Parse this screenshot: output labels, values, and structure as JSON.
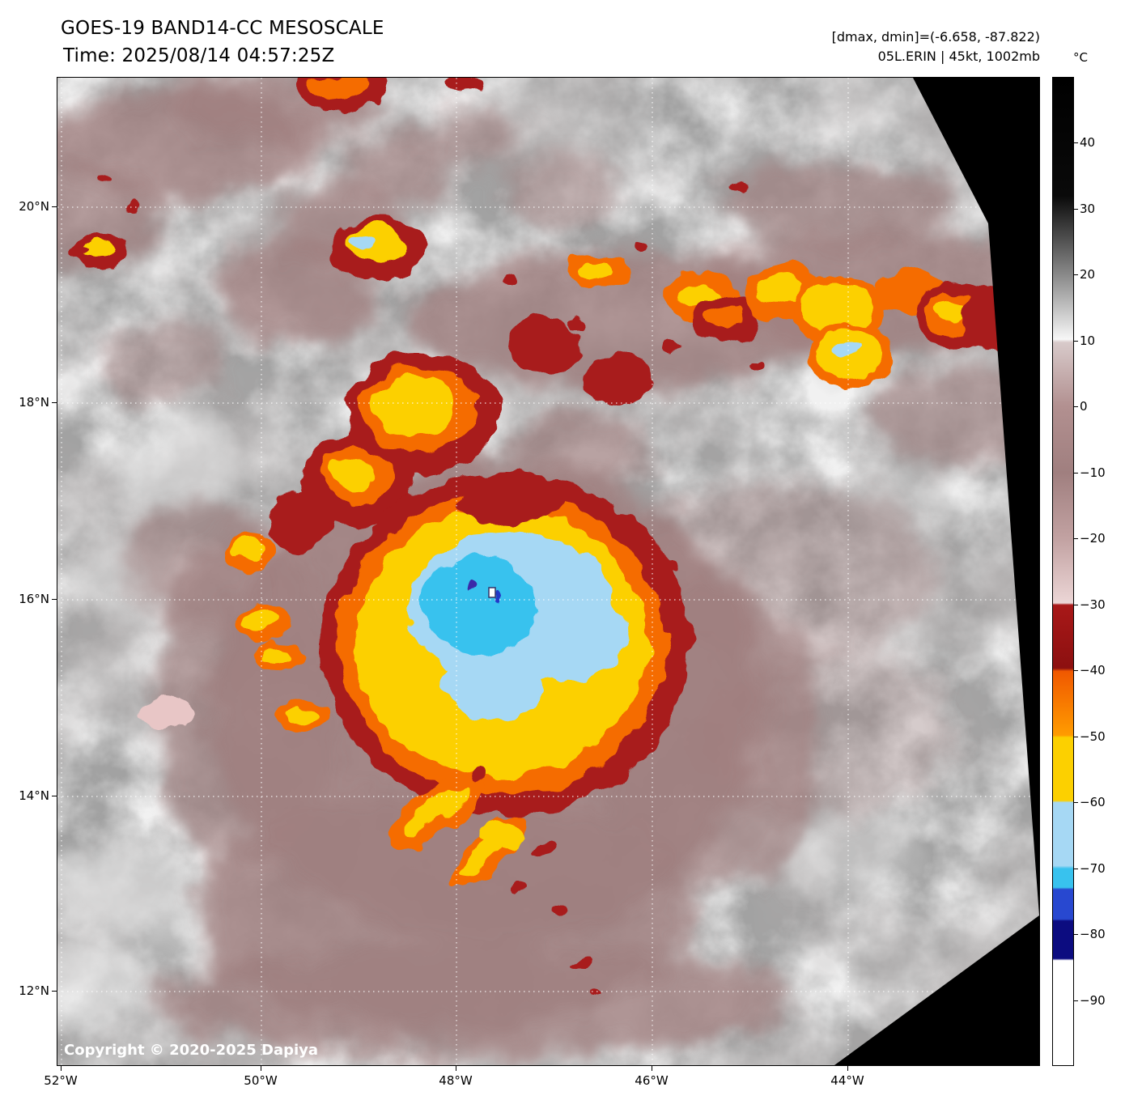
{
  "header": {
    "title_line1": "GOES-19 BAND14-CC MESOSCALE",
    "title_line2": "Time: 2025/08/14 04:57:25Z",
    "info_line1": "[dmax, dmin]=(-6.658, -87.822)",
    "info_line2": "05L.ERIN | 45kt, 1002mb"
  },
  "map": {
    "lat_labels": [
      "20°N",
      "18°N",
      "16°N",
      "14°N",
      "12°N"
    ],
    "lon_labels": [
      "52°W",
      "50°W",
      "48°W",
      "46°W",
      "44°W"
    ],
    "copyright": "Copyright © 2020-2025 Dapiya"
  },
  "colorbar": {
    "unit": "°C",
    "ticks": [
      {
        "label": "40",
        "value": 40
      },
      {
        "label": "30",
        "value": 30
      },
      {
        "label": "20",
        "value": 20
      },
      {
        "label": "10",
        "value": 10
      },
      {
        "label": "0",
        "value": 0
      },
      {
        "label": "−10",
        "value": -10
      },
      {
        "label": "−20",
        "value": -20
      },
      {
        "label": "−30",
        "value": -30
      },
      {
        "label": "−40",
        "value": -40
      },
      {
        "label": "−50",
        "value": -50
      },
      {
        "label": "−60",
        "value": -60
      },
      {
        "label": "−70",
        "value": -70
      },
      {
        "label": "−80",
        "value": -80
      },
      {
        "label": "−90",
        "value": -90
      }
    ],
    "scale_top_c": 50,
    "scale_bottom_c": -100,
    "stops": [
      {
        "at": 0.0,
        "color": "#000000"
      },
      {
        "at": 0.12,
        "color": "#0a0a0a"
      },
      {
        "at": 0.2,
        "color": "#8a8a8a"
      },
      {
        "at": 0.265,
        "color": "#f7f7f7"
      },
      {
        "at": 0.268,
        "color": "#d8caca"
      },
      {
        "at": 0.333,
        "color": "#b29090"
      },
      {
        "at": 0.4,
        "color": "#a07f7f"
      },
      {
        "at": 0.467,
        "color": "#c2a2a2"
      },
      {
        "at": 0.532,
        "color": "#ecd6d6"
      },
      {
        "at": 0.534,
        "color": "#a81818"
      },
      {
        "at": 0.598,
        "color": "#8c1010"
      },
      {
        "at": 0.601,
        "color": "#f05800"
      },
      {
        "at": 0.666,
        "color": "#ff9c00"
      },
      {
        "at": 0.668,
        "color": "#fcd000"
      },
      {
        "at": 0.732,
        "color": "#fcd000"
      },
      {
        "at": 0.734,
        "color": "#a6d8f4"
      },
      {
        "at": 0.798,
        "color": "#a6d8f4"
      },
      {
        "at": 0.801,
        "color": "#38c2ee"
      },
      {
        "at": 0.82,
        "color": "#38c2ee"
      },
      {
        "at": 0.822,
        "color": "#2848d0"
      },
      {
        "at": 0.852,
        "color": "#2848d0"
      },
      {
        "at": 0.854,
        "color": "#0c0c80"
      },
      {
        "at": 0.892,
        "color": "#0c0c80"
      },
      {
        "at": 0.894,
        "color": "#ffffff"
      },
      {
        "at": 1.0,
        "color": "#ffffff"
      }
    ]
  }
}
